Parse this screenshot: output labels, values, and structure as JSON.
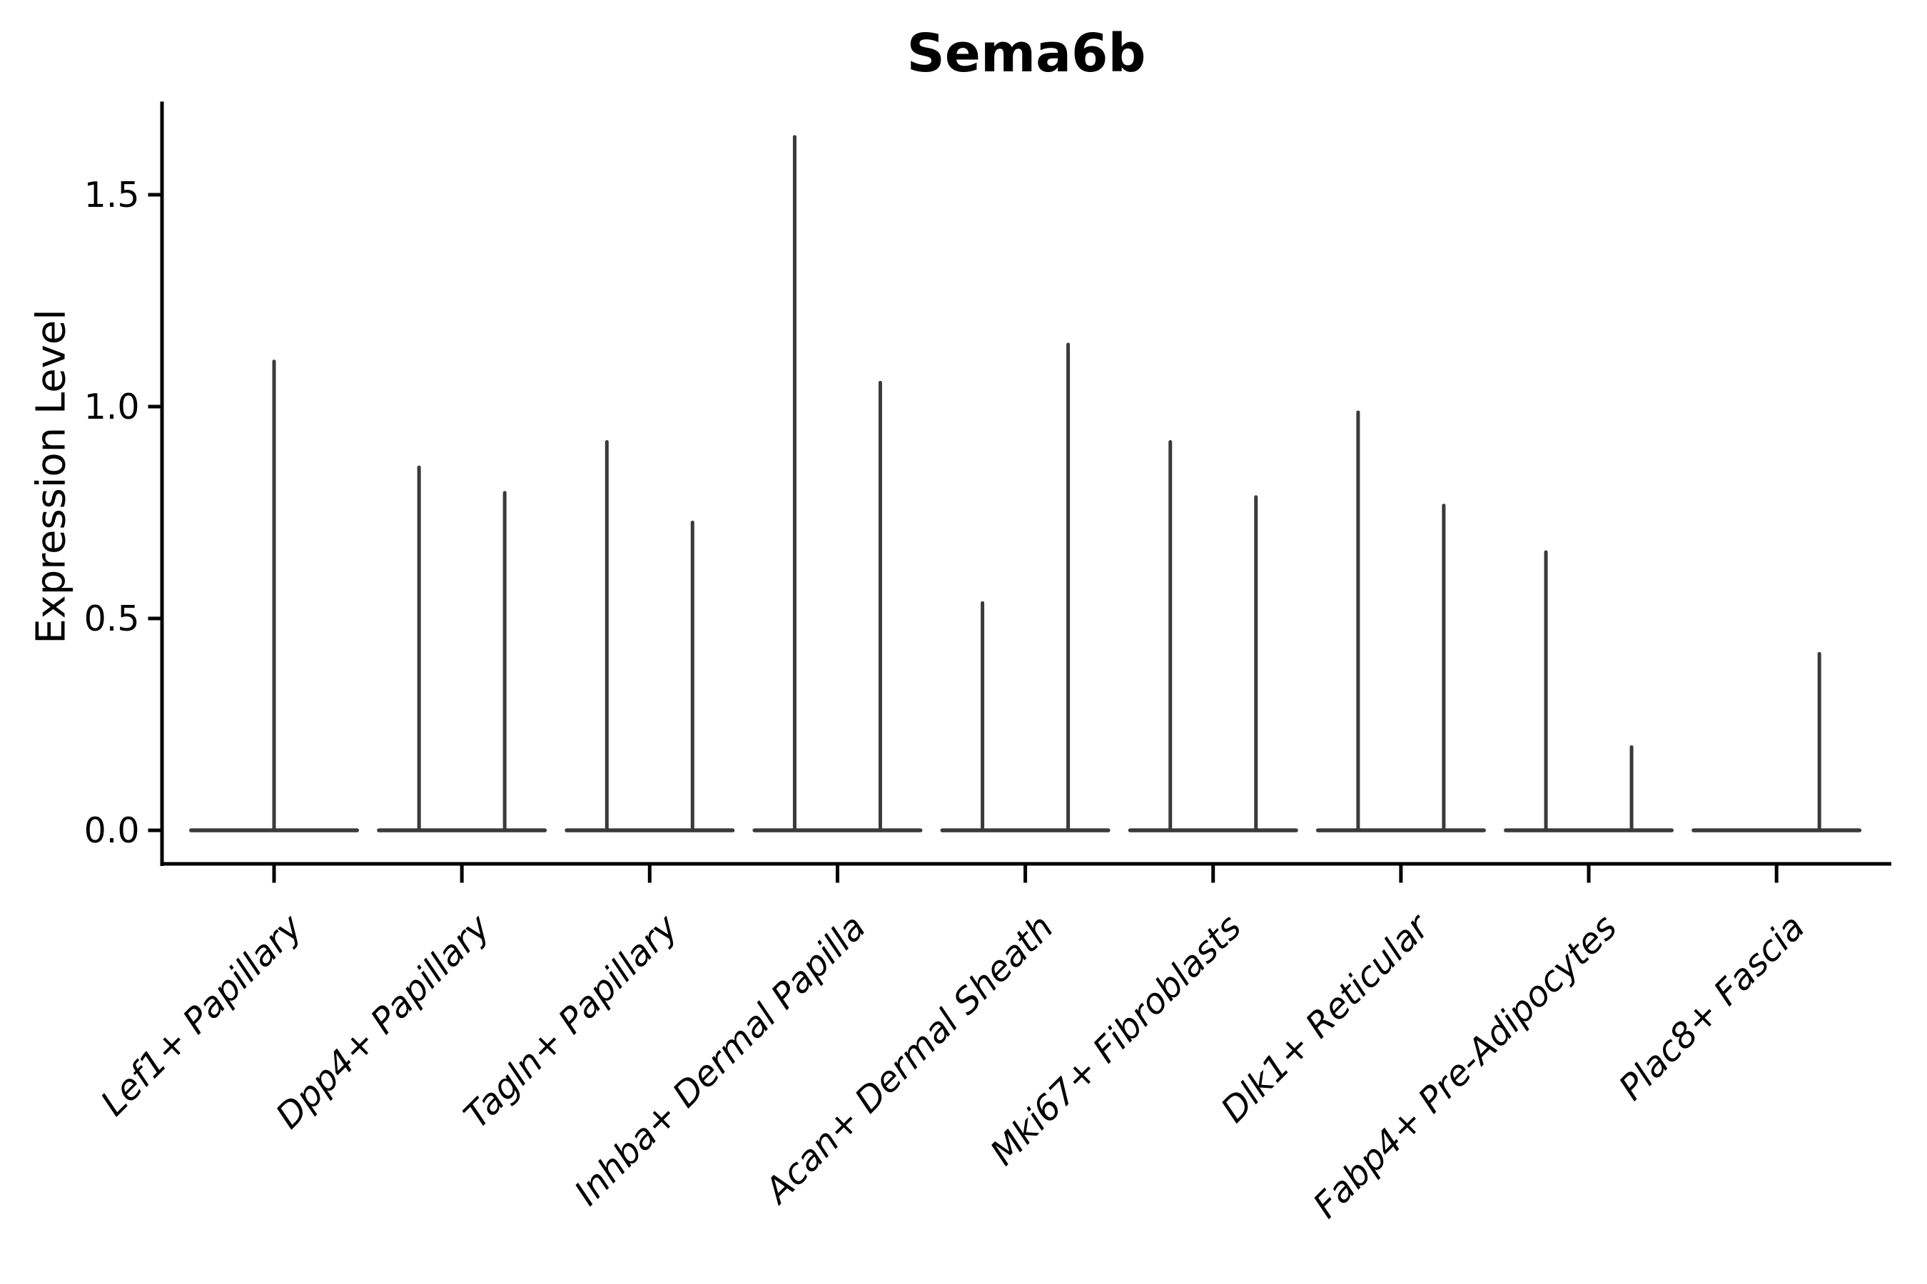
{
  "chart_data": {
    "type": "violin",
    "title": "Sema6b",
    "xlabel": "",
    "ylabel": "Expression Level",
    "ytick_labels": [
      "0.0",
      "0.5",
      "1.0",
      "1.5"
    ],
    "ytick_values": [
      0.0,
      0.5,
      1.0,
      1.5
    ],
    "ylim": [
      -0.08,
      1.72
    ],
    "grid": false,
    "legend": false,
    "background_color": "#ffffff",
    "violin_color": "#3a3a3a",
    "axis_color": "#000000",
    "baseline_value": 0.0,
    "categories": [
      "Lef1+ Papillary",
      "Dpp4+ Papillary",
      "Tagln+ Papillary",
      "Inhba+ Dermal Papilla",
      "Acan+ Dermal Sheath",
      "Mki67+ Fibroblasts",
      "Dlk1+ Reticular",
      "Fabp4+ Pre-Adipocytes",
      "Plac8+ Fascia"
    ],
    "series": [
      {
        "category": "Lef1+ Papillary",
        "spikes": [
          {
            "position": "center",
            "peak": 1.11
          }
        ]
      },
      {
        "category": "Dpp4+ Papillary",
        "spikes": [
          {
            "position": "left",
            "peak": 0.86
          },
          {
            "position": "right",
            "peak": 0.8
          }
        ]
      },
      {
        "category": "Tagln+ Papillary",
        "spikes": [
          {
            "position": "left",
            "peak": 0.92
          },
          {
            "position": "right",
            "peak": 0.73
          }
        ]
      },
      {
        "category": "Inhba+ Dermal Papilla",
        "spikes": [
          {
            "position": "left",
            "peak": 1.64
          },
          {
            "position": "right",
            "peak": 1.06
          }
        ]
      },
      {
        "category": "Acan+ Dermal Sheath",
        "spikes": [
          {
            "position": "left",
            "peak": 0.54
          },
          {
            "position": "right",
            "peak": 1.15
          }
        ]
      },
      {
        "category": "Mki67+ Fibroblasts",
        "spikes": [
          {
            "position": "left",
            "peak": 0.92
          },
          {
            "position": "right",
            "peak": 0.79
          }
        ]
      },
      {
        "category": "Dlk1+ Reticular",
        "spikes": [
          {
            "position": "left",
            "peak": 0.99
          },
          {
            "position": "right",
            "peak": 0.77
          }
        ]
      },
      {
        "category": "Fabp4+ Pre-Adipocytes",
        "spikes": [
          {
            "position": "left",
            "peak": 0.66
          },
          {
            "position": "right",
            "peak": 0.2
          }
        ]
      },
      {
        "category": "Plac8+ Fascia",
        "spikes": [
          {
            "position": "right",
            "peak": 0.42
          }
        ]
      }
    ]
  }
}
